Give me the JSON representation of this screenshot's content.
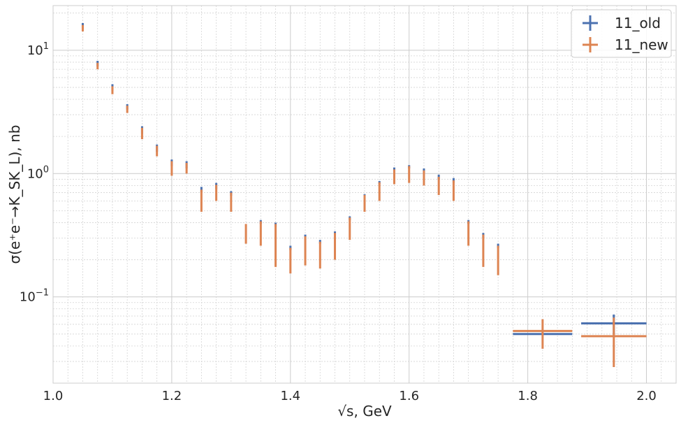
{
  "chart_data": {
    "type": "scatter",
    "title": "",
    "xlabel": "√s, GeV",
    "ylabel": "σ(e⁺e⁻→K_SK_L), nb",
    "xlim": [
      1.0,
      2.05
    ],
    "ylim": [
      0.02,
      23
    ],
    "yscale": "log",
    "grid": true,
    "legend_position": "top-right",
    "x_ticks": [
      "1.0",
      "1.2",
      "1.4",
      "1.6",
      "1.8",
      "2.0"
    ],
    "x_tick_values": [
      1.0,
      1.2,
      1.4,
      1.6,
      1.8,
      2.0
    ],
    "y_ticks": [
      {
        "value": 0.1,
        "base": "10",
        "exp": "−1"
      },
      {
        "value": 1,
        "base": "10",
        "exp": "0"
      },
      {
        "value": 10,
        "base": "10",
        "exp": "1"
      }
    ],
    "series": [
      {
        "name": "11_old",
        "color": "#4c72b0",
        "points": [
          {
            "x": 1.05,
            "ylo": 14.8,
            "yhi": 16.6
          },
          {
            "x": 1.075,
            "ylo": 7.4,
            "yhi": 8.2
          },
          {
            "x": 1.1,
            "ylo": 4.7,
            "yhi": 5.3
          },
          {
            "x": 1.125,
            "ylo": 3.3,
            "yhi": 3.65
          },
          {
            "x": 1.15,
            "ylo": 2.1,
            "yhi": 2.42
          },
          {
            "x": 1.175,
            "ylo": 1.5,
            "yhi": 1.72
          },
          {
            "x": 1.2,
            "ylo": 1.15,
            "yhi": 1.3
          },
          {
            "x": 1.225,
            "ylo": 1.1,
            "yhi": 1.26
          },
          {
            "x": 1.25,
            "ylo": 0.7,
            "yhi": 0.78
          },
          {
            "x": 1.275,
            "ylo": 0.75,
            "yhi": 0.84
          },
          {
            "x": 1.3,
            "ylo": 0.66,
            "yhi": 0.72
          },
          {
            "x": 1.35,
            "ylo": 0.39,
            "yhi": 0.42
          },
          {
            "x": 1.375,
            "ylo": 0.37,
            "yhi": 0.4
          },
          {
            "x": 1.4,
            "ylo": 0.24,
            "yhi": 0.26
          },
          {
            "x": 1.425,
            "ylo": 0.29,
            "yhi": 0.32
          },
          {
            "x": 1.45,
            "ylo": 0.27,
            "yhi": 0.29
          },
          {
            "x": 1.475,
            "ylo": 0.32,
            "yhi": 0.34
          },
          {
            "x": 1.5,
            "ylo": 0.42,
            "yhi": 0.45
          },
          {
            "x": 1.525,
            "ylo": 0.64,
            "yhi": 0.68
          },
          {
            "x": 1.55,
            "ylo": 0.82,
            "yhi": 0.87
          },
          {
            "x": 1.575,
            "ylo": 1.03,
            "yhi": 1.12
          },
          {
            "x": 1.6,
            "ylo": 1.1,
            "yhi": 1.17
          },
          {
            "x": 1.625,
            "ylo": 1.0,
            "yhi": 1.1
          },
          {
            "x": 1.65,
            "ylo": 0.89,
            "yhi": 0.98
          },
          {
            "x": 1.675,
            "ylo": 0.84,
            "yhi": 0.92
          },
          {
            "x": 1.7,
            "ylo": 0.39,
            "yhi": 0.42
          },
          {
            "x": 1.725,
            "ylo": 0.3,
            "yhi": 0.33
          },
          {
            "x": 1.75,
            "ylo": 0.25,
            "yhi": 0.27
          },
          {
            "x": 1.825,
            "ylo": 0.05,
            "yhi": 0.05,
            "xerr": 0.05
          },
          {
            "x": 1.945,
            "ylo": 0.05,
            "yhi": 0.072,
            "xerr": 0.055
          }
        ]
      },
      {
        "name": "11_new",
        "color": "#dd8452",
        "points": [
          {
            "x": 1.05,
            "ylo": 14.2,
            "yhi": 16.0
          },
          {
            "x": 1.075,
            "ylo": 7.0,
            "yhi": 7.9
          },
          {
            "x": 1.1,
            "ylo": 4.4,
            "yhi": 5.1
          },
          {
            "x": 1.125,
            "ylo": 3.1,
            "yhi": 3.55
          },
          {
            "x": 1.15,
            "ylo": 1.9,
            "yhi": 2.35
          },
          {
            "x": 1.175,
            "ylo": 1.38,
            "yhi": 1.68
          },
          {
            "x": 1.2,
            "ylo": 0.96,
            "yhi": 1.26
          },
          {
            "x": 1.225,
            "ylo": 1.0,
            "yhi": 1.22
          },
          {
            "x": 1.25,
            "ylo": 0.49,
            "yhi": 0.74
          },
          {
            "x": 1.275,
            "ylo": 0.6,
            "yhi": 0.81
          },
          {
            "x": 1.3,
            "ylo": 0.49,
            "yhi": 0.7
          },
          {
            "x": 1.325,
            "ylo": 0.27,
            "yhi": 0.39
          },
          {
            "x": 1.35,
            "ylo": 0.26,
            "yhi": 0.41
          },
          {
            "x": 1.375,
            "ylo": 0.175,
            "yhi": 0.39
          },
          {
            "x": 1.4,
            "ylo": 0.155,
            "yhi": 0.25
          },
          {
            "x": 1.425,
            "ylo": 0.18,
            "yhi": 0.31
          },
          {
            "x": 1.45,
            "ylo": 0.17,
            "yhi": 0.28
          },
          {
            "x": 1.475,
            "ylo": 0.2,
            "yhi": 0.33
          },
          {
            "x": 1.5,
            "ylo": 0.29,
            "yhi": 0.44
          },
          {
            "x": 1.525,
            "ylo": 0.49,
            "yhi": 0.67
          },
          {
            "x": 1.55,
            "ylo": 0.6,
            "yhi": 0.85
          },
          {
            "x": 1.575,
            "ylo": 0.82,
            "yhi": 1.08
          },
          {
            "x": 1.6,
            "ylo": 0.84,
            "yhi": 1.15
          },
          {
            "x": 1.625,
            "ylo": 0.8,
            "yhi": 1.06
          },
          {
            "x": 1.65,
            "ylo": 0.67,
            "yhi": 0.94
          },
          {
            "x": 1.675,
            "ylo": 0.6,
            "yhi": 0.88
          },
          {
            "x": 1.7,
            "ylo": 0.26,
            "yhi": 0.41
          },
          {
            "x": 1.725,
            "ylo": 0.175,
            "yhi": 0.32
          },
          {
            "x": 1.75,
            "ylo": 0.15,
            "yhi": 0.26
          },
          {
            "x": 1.825,
            "ylo": 0.038,
            "yhi": 0.066,
            "y": 0.053,
            "xerr": 0.05
          },
          {
            "x": 1.945,
            "ylo": 0.027,
            "yhi": 0.068,
            "y": 0.048,
            "xerr": 0.055
          }
        ]
      }
    ]
  }
}
